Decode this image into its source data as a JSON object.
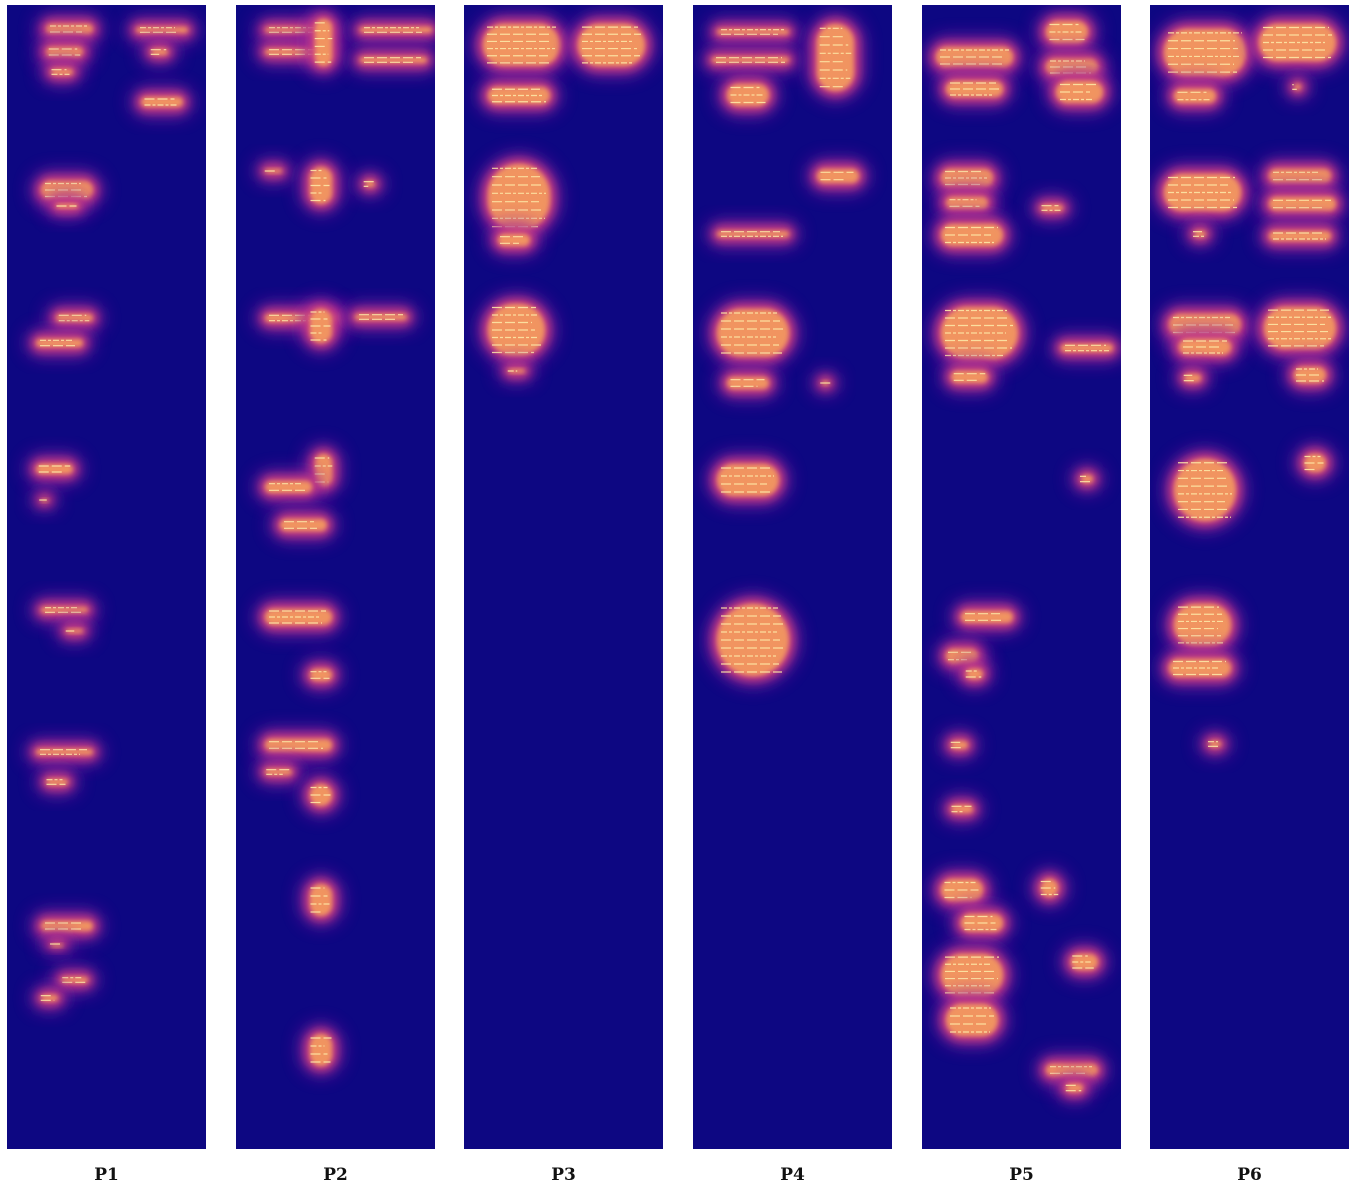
{
  "figure": {
    "colormap": "plasma",
    "background_color": "#0d0782",
    "glow_colors": [
      "#8b1aa0",
      "#d9467a",
      "#f7a35c",
      "#fde7a5"
    ],
    "panels": [
      {
        "label": "P1"
      },
      {
        "label": "P2"
      },
      {
        "label": "P3"
      },
      {
        "label": "P4"
      },
      {
        "label": "P5"
      },
      {
        "label": "P6"
      }
    ]
  }
}
